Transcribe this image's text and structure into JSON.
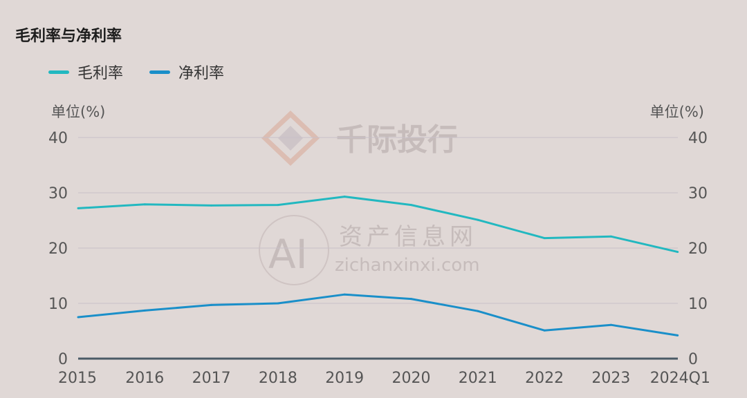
{
  "title": "毛利率与净利率",
  "legend": [
    {
      "name": "毛利率",
      "color": "#22b8c0"
    },
    {
      "name": "净利率",
      "color": "#1a8fc9"
    }
  ],
  "unit_left": "单位(%)",
  "unit_right": "单位(%)",
  "watermark": {
    "brand": "千际投行",
    "site_cn": "资产信息网",
    "site_url": "zichanxinxi.com",
    "logo_text": "AI"
  },
  "colors": {
    "background": "#e0d8d6",
    "grid": "#c8c0c8",
    "axis": "#4a5a66"
  },
  "chart_data": {
    "type": "line",
    "title": "毛利率与净利率",
    "categories": [
      "2015",
      "2016",
      "2017",
      "2018",
      "2019",
      "2020",
      "2021",
      "2022",
      "2023",
      "2024Q1"
    ],
    "series": [
      {
        "name": "毛利率",
        "values": [
          27.2,
          27.9,
          27.7,
          27.8,
          29.3,
          27.8,
          25.1,
          21.8,
          22.1,
          19.3
        ]
      },
      {
        "name": "净利率",
        "values": [
          7.5,
          8.7,
          9.7,
          10.0,
          11.6,
          10.8,
          8.6,
          5.1,
          6.1,
          4.2
        ]
      }
    ],
    "ylabel_left": "单位(%)",
    "ylabel_right": "单位(%)",
    "ylim": [
      0,
      40
    ],
    "yticks": [
      0,
      10,
      20,
      30,
      40
    ],
    "grid": true,
    "legend_position": "top-left"
  }
}
